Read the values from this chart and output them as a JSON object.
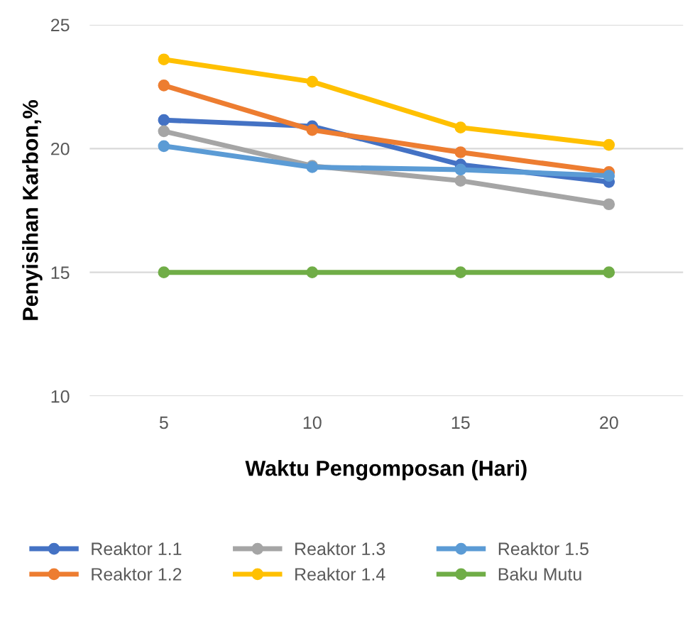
{
  "chart_data": {
    "type": "line",
    "xlabel": "Waktu Pengomposan (Hari)",
    "ylabel": "Penyisihan Karbon,%",
    "categories": [
      "5",
      "10",
      "15",
      "20"
    ],
    "series": [
      {
        "name": "Reaktor 1.1",
        "color": "#4472c4",
        "values": [
          21.15,
          20.9,
          19.35,
          18.65
        ]
      },
      {
        "name": "Reaktor 1.2",
        "color": "#ed7d31",
        "values": [
          22.55,
          20.75,
          19.85,
          19.05
        ]
      },
      {
        "name": "Reaktor 1.3",
        "color": "#a5a5a5",
        "values": [
          20.7,
          19.3,
          18.7,
          17.75
        ]
      },
      {
        "name": "Reaktor 1.4",
        "color": "#ffc000",
        "values": [
          23.6,
          22.7,
          20.85,
          20.15
        ]
      },
      {
        "name": "Reaktor 1.5",
        "color": "#5b9bd5",
        "values": [
          20.1,
          19.25,
          19.15,
          18.9
        ]
      },
      {
        "name": "Baku Mutu",
        "color": "#70ad47",
        "values": [
          15,
          15,
          15,
          15
        ]
      }
    ],
    "ylim": [
      10,
      25
    ],
    "yticks": [
      10,
      15,
      20,
      25
    ],
    "grid": "y",
    "legend": "bottom",
    "marker": "circle",
    "line_style": "solid"
  }
}
